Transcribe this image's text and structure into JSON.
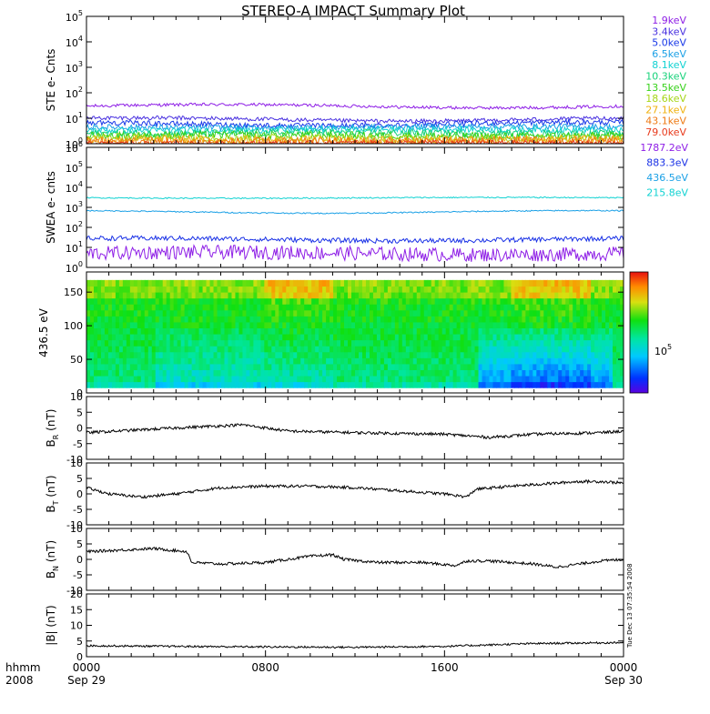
{
  "title": "STEREO-A IMPACT Summary Plot",
  "colors": {
    "ste_series": [
      "#8e1ee6",
      "#4830e0",
      "#1838e8",
      "#1aa0e6",
      "#10d2d2",
      "#17d27a",
      "#37d21a",
      "#a6d617",
      "#f0b20f",
      "#ee7a14",
      "#e83a1c"
    ],
    "swea_series": [
      "#8e1ee6",
      "#1830e6",
      "#1aa0e6",
      "#10d2d2"
    ],
    "trace": "#000000"
  },
  "chart_data": [
    {
      "type": "line",
      "id": "ste",
      "ylabel": "STE e- Cnts",
      "yscale": "log",
      "ylim": [
        1,
        100000
      ],
      "yticks": [
        {
          "value": 1,
          "label": "10",
          "exp": "0"
        },
        {
          "value": 10,
          "label": "10",
          "exp": "1"
        },
        {
          "value": 100,
          "label": "10",
          "exp": "2"
        },
        {
          "value": 1000,
          "label": "10",
          "exp": "3"
        },
        {
          "value": 10000,
          "label": "10",
          "exp": "4"
        },
        {
          "value": 100000,
          "label": "10",
          "exp": "5"
        }
      ],
      "series": [
        {
          "name": "1.9keV",
          "level": 30,
          "noise": 0.06
        },
        {
          "name": "3.4keV",
          "level": 9,
          "noise": 0.08
        },
        {
          "name": "5.0keV",
          "level": 6,
          "noise": 0.1
        },
        {
          "name": "6.5keV",
          "level": 4.5,
          "noise": 0.11
        },
        {
          "name": "8.1keV",
          "level": 3.5,
          "noise": 0.12
        },
        {
          "name": "10.3keV",
          "level": 2.6,
          "noise": 0.14
        },
        {
          "name": "13.5keV",
          "level": 2.1,
          "noise": 0.15
        },
        {
          "name": "18.6keV",
          "level": 1.7,
          "noise": 0.16
        },
        {
          "name": "27.1keV",
          "level": 1.4,
          "noise": 0.17
        },
        {
          "name": "43.1keV",
          "level": 1.2,
          "noise": 0.18
        },
        {
          "name": "79.0keV",
          "level": 1.05,
          "noise": 0.1
        }
      ]
    },
    {
      "type": "line",
      "id": "swea",
      "ylabel": "SWEA e- cnts",
      "yscale": "log",
      "ylim": [
        1,
        1000000
      ],
      "yticks": [
        {
          "value": 1,
          "label": "10",
          "exp": "0"
        },
        {
          "value": 10,
          "label": "10",
          "exp": "1"
        },
        {
          "value": 100,
          "label": "10",
          "exp": "2"
        },
        {
          "value": 1000,
          "label": "10",
          "exp": "3"
        },
        {
          "value": 10000,
          "label": "10",
          "exp": "4"
        },
        {
          "value": 100000,
          "label": "10",
          "exp": "5"
        },
        {
          "value": 1000000,
          "label": "10",
          "exp": "6"
        }
      ],
      "series": [
        {
          "name": "1787.2eV",
          "level": 5,
          "noise": 0.35
        },
        {
          "name": "883.3eV",
          "level": 25,
          "noise": 0.12
        },
        {
          "name": "436.5eV",
          "level": 600,
          "noise": 0.03
        },
        {
          "name": "215.8eV",
          "level": 3000,
          "noise": 0.03
        }
      ]
    },
    {
      "type": "heatmap",
      "id": "pad",
      "ylabel": "436.5 eV",
      "ylim": [
        0,
        180
      ],
      "yticks": [
        0,
        50,
        100,
        150
      ],
      "colorbar_label": "10",
      "colorbar_exp": "5"
    },
    {
      "type": "line",
      "id": "br",
      "ylabel": "B",
      "ylabel_sub": "R",
      "ylabel_unit": "(nT)",
      "ylim": [
        -10,
        10
      ],
      "yticks": [
        -10,
        -5,
        0,
        5,
        10
      ],
      "profile": [
        [
          0,
          -1.5
        ],
        [
          4,
          0
        ],
        [
          7,
          1
        ],
        [
          9,
          -1
        ],
        [
          12,
          -1.5
        ],
        [
          16,
          -2
        ],
        [
          18,
          -3
        ],
        [
          20,
          -2
        ],
        [
          23,
          -1.5
        ],
        [
          24,
          -1
        ]
      ]
    },
    {
      "type": "line",
      "id": "bt",
      "ylabel": "B",
      "ylabel_sub": "T",
      "ylabel_unit": "(nT)",
      "ylim": [
        -10,
        10
      ],
      "yticks": [
        -10,
        -5,
        0,
        5,
        10
      ],
      "profile": [
        [
          0,
          2
        ],
        [
          1,
          0
        ],
        [
          2.5,
          -1
        ],
        [
          4,
          0
        ],
        [
          6,
          2
        ],
        [
          8,
          2.5
        ],
        [
          10,
          2.5
        ],
        [
          12,
          2
        ],
        [
          14,
          1
        ],
        [
          16,
          0
        ],
        [
          17,
          -1
        ],
        [
          17.4,
          1.5
        ],
        [
          19,
          2.5
        ],
        [
          21,
          3.5
        ],
        [
          22,
          4
        ],
        [
          23,
          4
        ],
        [
          24,
          3.5
        ]
      ]
    },
    {
      "type": "line",
      "id": "bn",
      "ylabel": "B",
      "ylabel_sub": "N",
      "ylabel_unit": "(nT)",
      "ylim": [
        -10,
        10
      ],
      "yticks": [
        -10,
        -5,
        0,
        5,
        10
      ],
      "profile": [
        [
          0,
          2.5
        ],
        [
          3,
          3.5
        ],
        [
          4.5,
          2.5
        ],
        [
          4.7,
          -1
        ],
        [
          6,
          -1.5
        ],
        [
          8,
          -1
        ],
        [
          10,
          1
        ],
        [
          11,
          1.5
        ],
        [
          11.5,
          0
        ],
        [
          13,
          -1
        ],
        [
          15,
          -1
        ],
        [
          16.5,
          -2
        ],
        [
          17,
          -0.5
        ],
        [
          18,
          -0.5
        ],
        [
          20,
          -1.5
        ],
        [
          21,
          -2.5
        ],
        [
          23,
          -0.5
        ],
        [
          24,
          0
        ]
      ]
    },
    {
      "type": "line",
      "id": "btot",
      "ylabel": "|B|",
      "ylabel_unit": "(nT)",
      "ylim": [
        0,
        20
      ],
      "yticks": [
        0,
        5,
        10,
        15,
        20
      ],
      "profile": [
        [
          0,
          3.5
        ],
        [
          6,
          3.2
        ],
        [
          12,
          3.0
        ],
        [
          16,
          3.3
        ],
        [
          20,
          4.2
        ],
        [
          24,
          4.5
        ]
      ]
    }
  ],
  "xaxis": {
    "ticks": [
      {
        "hour": 0,
        "label": "0000",
        "sub": "Sep 29"
      },
      {
        "hour": 8,
        "label": "0800",
        "sub": ""
      },
      {
        "hour": 16,
        "label": "1600",
        "sub": ""
      },
      {
        "hour": 24,
        "label": "0000",
        "sub": "Sep 30"
      }
    ],
    "left_label": "hhmm",
    "left_sub": "2008",
    "range_hours": [
      0,
      24
    ]
  },
  "timestamp": "Tue Dec 13 07:35:54 2008"
}
